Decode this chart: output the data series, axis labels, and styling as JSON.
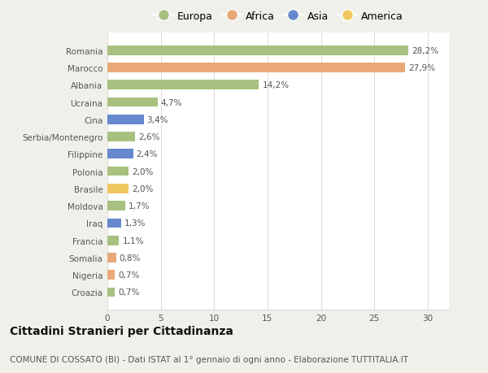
{
  "categories": [
    "Romania",
    "Marocco",
    "Albania",
    "Ucraina",
    "Cina",
    "Serbia/Montenegro",
    "Filippine",
    "Polonia",
    "Brasile",
    "Moldova",
    "Iraq",
    "Francia",
    "Somalia",
    "Nigeria",
    "Croazia"
  ],
  "values": [
    28.2,
    27.9,
    14.2,
    4.7,
    3.4,
    2.6,
    2.4,
    2.0,
    2.0,
    1.7,
    1.3,
    1.1,
    0.8,
    0.7,
    0.7
  ],
  "labels": [
    "28,2%",
    "27,9%",
    "14,2%",
    "4,7%",
    "3,4%",
    "2,6%",
    "2,4%",
    "2,0%",
    "2,0%",
    "1,7%",
    "1,3%",
    "1,1%",
    "0,8%",
    "0,7%",
    "0,7%"
  ],
  "continents": [
    "Europa",
    "Africa",
    "Europa",
    "Europa",
    "Asia",
    "Europa",
    "Asia",
    "Europa",
    "America",
    "Europa",
    "Asia",
    "Europa",
    "Africa",
    "Africa",
    "Europa"
  ],
  "continent_colors": {
    "Europa": "#a8c080",
    "Africa": "#e8a878",
    "Asia": "#6688cc",
    "America": "#f0c860"
  },
  "legend_order": [
    "Europa",
    "Africa",
    "Asia",
    "America"
  ],
  "xlim": [
    0,
    32
  ],
  "xticks": [
    0,
    5,
    10,
    15,
    20,
    25,
    30
  ],
  "title": "Cittadini Stranieri per Cittadinanza",
  "subtitle": "COMUNE DI COSSATO (BI) - Dati ISTAT al 1° gennaio di ogni anno - Elaborazione TUTTITALIA.IT",
  "background_color": "#f0f0eb",
  "plot_bg_color": "#ffffff",
  "grid_color": "#dddddd",
  "title_fontsize": 10,
  "subtitle_fontsize": 7.5,
  "label_fontsize": 7.5,
  "tick_fontsize": 7.5
}
